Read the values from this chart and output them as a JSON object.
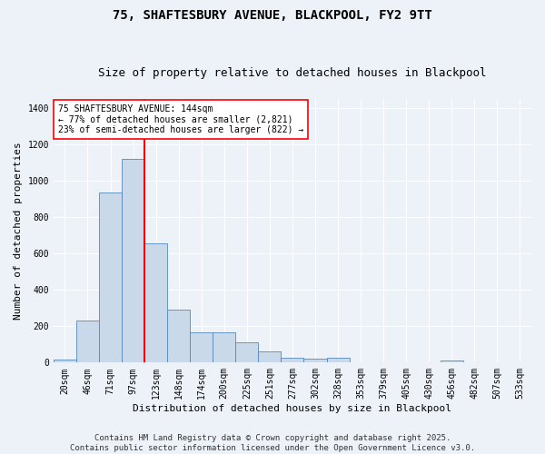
{
  "title_line1": "75, SHAFTESBURY AVENUE, BLACKPOOL, FY2 9TT",
  "title_line2": "Size of property relative to detached houses in Blackpool",
  "xlabel": "Distribution of detached houses by size in Blackpool",
  "ylabel": "Number of detached properties",
  "categories": [
    "20sqm",
    "46sqm",
    "71sqm",
    "97sqm",
    "123sqm",
    "148sqm",
    "174sqm",
    "200sqm",
    "225sqm",
    "251sqm",
    "277sqm",
    "302sqm",
    "328sqm",
    "353sqm",
    "379sqm",
    "405sqm",
    "430sqm",
    "456sqm",
    "482sqm",
    "507sqm",
    "533sqm"
  ],
  "values": [
    15,
    230,
    935,
    1120,
    655,
    290,
    165,
    165,
    110,
    60,
    25,
    20,
    25,
    0,
    0,
    0,
    0,
    12,
    0,
    0,
    0
  ],
  "bar_color": "#cad9ea",
  "bar_edge_color": "#5588bb",
  "vline_color": "red",
  "annotation_text": "75 SHAFTESBURY AVENUE: 144sqm\n← 77% of detached houses are smaller (2,821)\n23% of semi-detached houses are larger (822) →",
  "annotation_box_color": "white",
  "annotation_box_edge": "red",
  "ylim": [
    0,
    1450
  ],
  "yticks": [
    0,
    200,
    400,
    600,
    800,
    1000,
    1200,
    1400
  ],
  "footnote": "Contains HM Land Registry data © Crown copyright and database right 2025.\nContains public sector information licensed under the Open Government Licence v3.0.",
  "bg_color": "#edf2f9",
  "grid_color": "white",
  "title_fontsize": 10,
  "subtitle_fontsize": 9,
  "axis_label_fontsize": 8,
  "tick_fontsize": 7,
  "footnote_fontsize": 6.5,
  "annotation_fontsize": 7
}
